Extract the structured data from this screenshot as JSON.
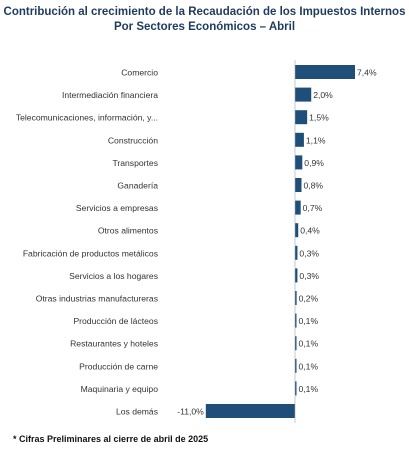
{
  "header": {
    "title_line1": "Contribución al crecimiento de la Recaudación de los Impuestos Internos",
    "title_line2": "Por Sectores Económicos – Abril"
  },
  "footnote": "* Cifras Preliminares al cierre de abril de 2025",
  "chart_data": {
    "type": "bar",
    "orientation": "horizontal",
    "title": "Contribución al crecimiento de la Recaudación de los Impuestos Internos Por Sectores Económicos – Abril",
    "categories": [
      "Comercio",
      "Intermediación financiera",
      "Telecomunicaciones, información, y...",
      "Construcción",
      "Transportes",
      "Ganadería",
      "Servicios a empresas",
      "Otros alimentos",
      "Fabricación de productos metálicos",
      "Servicios a los hogares",
      "Otras industrias manufactureras",
      "Producción de lácteos",
      "Restaurantes y hoteles",
      "Producción de carne",
      "Maquinaria y equipo",
      "Los demás"
    ],
    "values": [
      7.4,
      2.0,
      1.5,
      1.1,
      0.9,
      0.8,
      0.7,
      0.4,
      0.3,
      0.3,
      0.2,
      0.1,
      0.1,
      0.1,
      0.1,
      -11.0
    ],
    "data_labels": [
      "7,4%",
      "2,0%",
      "1,5%",
      "1,1%",
      "0,9%",
      "0,8%",
      "0,7%",
      "0,4%",
      "0,3%",
      "0,3%",
      "0,2%",
      "0,1%",
      "0,1%",
      "0,1%",
      "0,1%",
      "-11,0%"
    ],
    "xlim": [
      -11.0,
      7.4
    ],
    "bar_color": "#1f4e79",
    "grid": false,
    "legend": "none",
    "xlabel": "",
    "ylabel": ""
  }
}
